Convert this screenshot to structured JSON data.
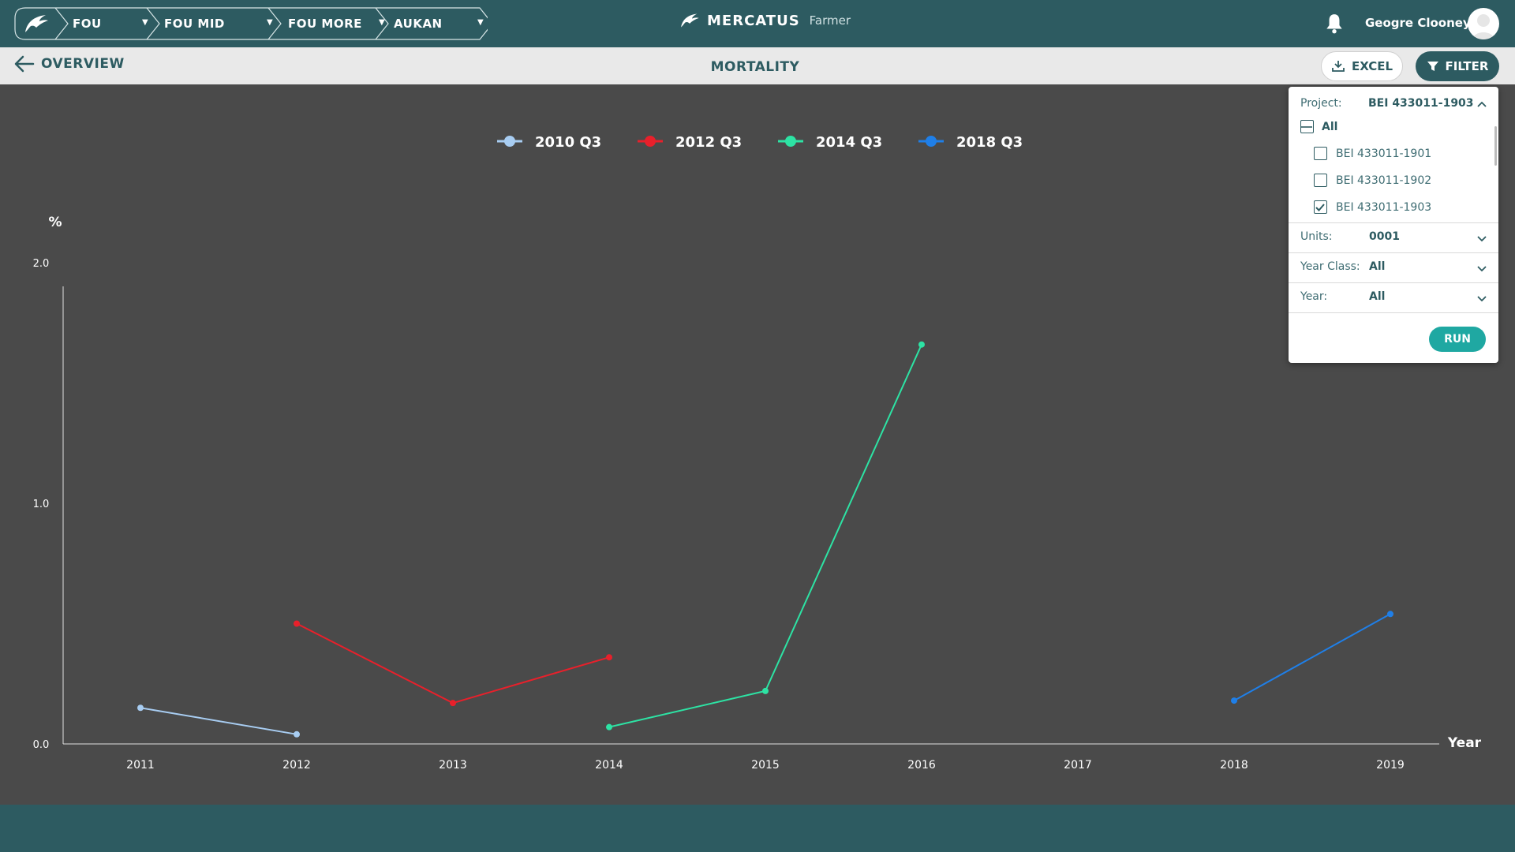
{
  "breadcrumbs": [
    "FOU",
    "FOU MID",
    "FOU MORE",
    "AUKAN"
  ],
  "brand": {
    "name": "MERCATUS",
    "sub": "Farmer"
  },
  "user": {
    "name": "Geogre Clooney"
  },
  "subheader": {
    "back_label": "OVERVIEW",
    "title": "MORTALITY",
    "excel_label": "EXCEL",
    "filter_label": "FILTER"
  },
  "filter_panel": {
    "project_label": "Project:",
    "project_value": "BEI 433011-1903",
    "all_label": "All",
    "projects": [
      {
        "label": "BEI 433011-1901",
        "checked": false
      },
      {
        "label": "BEI 433011-1902",
        "checked": false
      },
      {
        "label": "BEI 433011-1903",
        "checked": true
      }
    ],
    "units_label": "Units:",
    "units_value": "0001",
    "yearclass_label": "Year Class:",
    "yearclass_value": "All",
    "year_label": "Year:",
    "year_value": "All",
    "run_label": "RUN"
  },
  "colors": {
    "brand": "#2d5b61",
    "background": "#4a4a4a",
    "accent": "#1fa8a2"
  },
  "chart_data": {
    "type": "line",
    "ylabel": "%",
    "xlabel": "Year",
    "ylim": [
      0,
      2.0
    ],
    "yticks": [
      "2.0",
      "1.0",
      "0.0"
    ],
    "x_categories": [
      "2011",
      "2012",
      "2013",
      "2014",
      "2015",
      "2016",
      "2017",
      "2018",
      "2019"
    ],
    "series": [
      {
        "name": "2010 Q3",
        "color": "#a8cdf2",
        "points": [
          [
            2011,
            0.15
          ],
          [
            2012,
            0.04
          ]
        ]
      },
      {
        "name": "2012 Q3",
        "color": "#e8202b",
        "points": [
          [
            2012,
            0.5
          ],
          [
            2013,
            0.17
          ],
          [
            2014,
            0.36
          ]
        ]
      },
      {
        "name": "2014 Q3",
        "color": "#2de3a4",
        "points": [
          [
            2014,
            0.07
          ],
          [
            2015,
            0.22
          ],
          [
            2016,
            1.66
          ]
        ]
      },
      {
        "name": "2018 Q3",
        "color": "#1f7fe8",
        "points": [
          [
            2018,
            0.18
          ],
          [
            2019,
            0.54
          ]
        ]
      }
    ]
  }
}
